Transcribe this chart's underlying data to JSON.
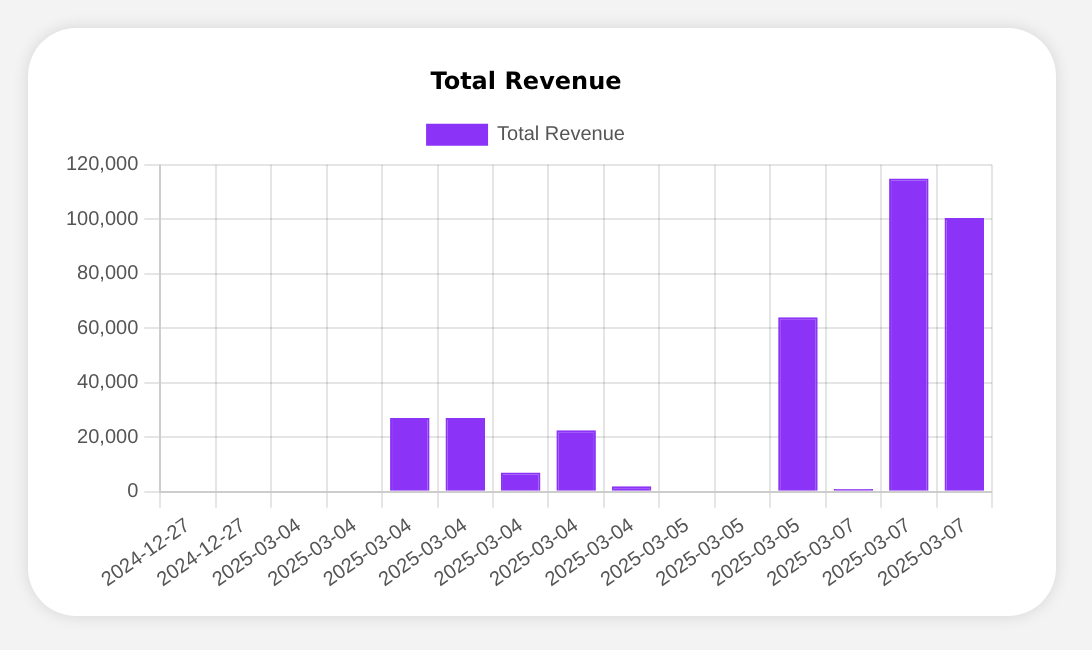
{
  "chart_data": {
    "type": "bar",
    "title": "Total Revenue",
    "categories": [
      "2024-12-27",
      "2024-12-27",
      "2025-03-04",
      "2025-03-04",
      "2025-03-04",
      "2025-03-04",
      "2025-03-04",
      "2025-03-04",
      "2025-03-04",
      "2025-03-05",
      "2025-03-05",
      "2025-03-05",
      "2025-03-07",
      "2025-03-07",
      "2025-03-07"
    ],
    "series": [
      {
        "name": "Total Revenue",
        "color": "#8b34f7",
        "values": [
          0,
          0,
          0,
          0,
          27000,
          27000,
          7000,
          22500,
          2000,
          0,
          0,
          64000,
          1000,
          115000,
          100500
        ]
      }
    ],
    "ylim": [
      0,
      120000
    ],
    "yticks": [
      0,
      {
        "value": 20000,
        "label": "20,000"
      },
      {
        "value": 40000,
        "label": "40,000"
      },
      {
        "value": 60000,
        "label": "60,000"
      },
      {
        "value": 80000,
        "label": "80,000"
      },
      {
        "value": 100000,
        "label": "100,000"
      },
      {
        "value": 120000,
        "label": "120,000"
      }
    ],
    "grid": true,
    "legend": "top"
  }
}
